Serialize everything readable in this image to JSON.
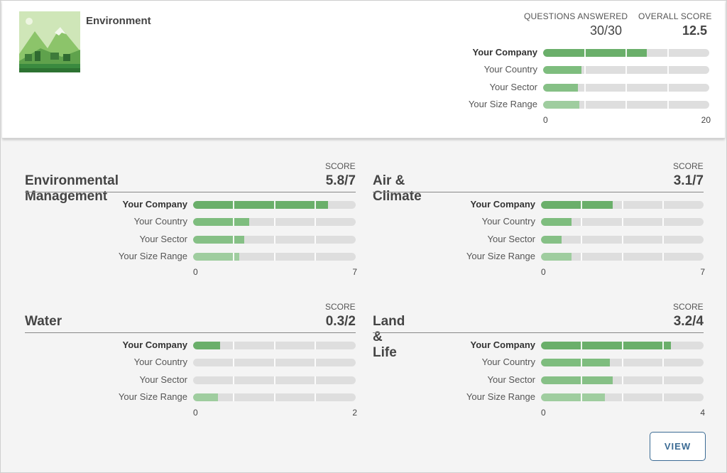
{
  "header": {
    "title": "Environment",
    "questions_label": "QUESTIONS ANSWERED",
    "questions_value": "30/30",
    "overall_label": "OVERALL SCORE",
    "overall_value": "12.5"
  },
  "row_labels": [
    "Your Company",
    "Your Country",
    "Your Sector",
    "Your Size Range"
  ],
  "overview": {
    "max": 20,
    "axis_min_label": "0",
    "axis_max_label": "20",
    "values": [
      12.5,
      4.6,
      4.2,
      4.4
    ]
  },
  "panels": [
    {
      "title": "Environmental Management",
      "score_label": "SCORE",
      "score": "5.8/7",
      "max": 7,
      "axis_min_label": "0",
      "axis_max_label": "7",
      "values": [
        5.8,
        2.4,
        2.2,
        2.0
      ]
    },
    {
      "title": "Air & Climate",
      "score_label": "SCORE",
      "score": "3.1/7",
      "max": 7,
      "axis_min_label": "0",
      "axis_max_label": "7",
      "values": [
        3.1,
        1.3,
        0.9,
        1.3
      ]
    },
    {
      "title": "Water",
      "score_label": "SCORE",
      "score": "0.3/2",
      "max": 2,
      "axis_min_label": "0",
      "axis_max_label": "2",
      "values": [
        0.33,
        0,
        0,
        0.31
      ]
    },
    {
      "title": "Land & Life",
      "score_label": "SCORE",
      "score": "3.2/4",
      "max": 4,
      "axis_min_label": "0",
      "axis_max_label": "4",
      "values": [
        3.2,
        1.7,
        1.76,
        1.58
      ]
    }
  ],
  "view_button": {
    "label": "VIEW"
  },
  "colors": {
    "company": "#6aaf6a",
    "country": "#7ebd7e",
    "sector": "#86c086",
    "size": "#9fcd9f",
    "track": "#dedede",
    "button": "#3b6b94"
  },
  "icons": {
    "thumbnail": "mountain-landscape-icon"
  }
}
